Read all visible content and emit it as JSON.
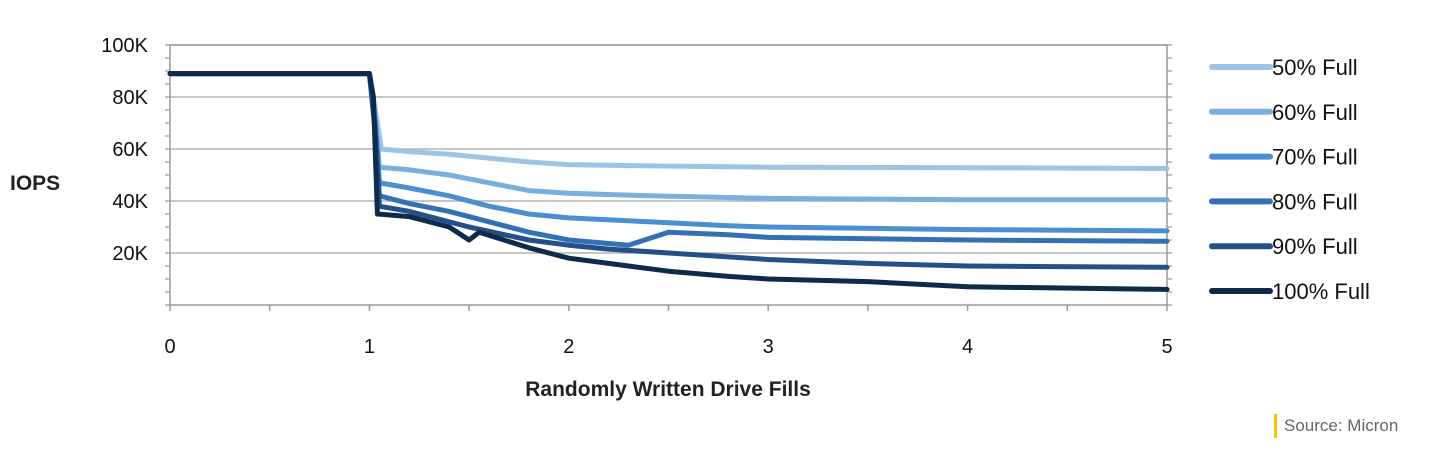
{
  "chart_data": {
    "type": "line",
    "title": "",
    "xlabel": "Randomly Written Drive Fills",
    "ylabel": "IOPS",
    "xlim": [
      0,
      5
    ],
    "ylim": [
      0,
      100000
    ],
    "x_ticks": [
      "0",
      "1",
      "2",
      "3",
      "4",
      "5"
    ],
    "y_ticks": [
      "20K",
      "40K",
      "60K",
      "80K",
      "100K"
    ],
    "grid": true,
    "legend_position": "right",
    "series": [
      {
        "name": "50% Full",
        "color": "#9dc3e6",
        "points": [
          [
            0,
            89000
          ],
          [
            1.0,
            89000
          ],
          [
            1.03,
            75000
          ],
          [
            1.06,
            60000
          ],
          [
            1.2,
            59000
          ],
          [
            1.4,
            58000
          ],
          [
            1.6,
            56500
          ],
          [
            1.8,
            55000
          ],
          [
            2.0,
            54000
          ],
          [
            2.4,
            53500
          ],
          [
            3.0,
            53000
          ],
          [
            4.0,
            52800
          ],
          [
            5.0,
            52500
          ]
        ]
      },
      {
        "name": "60% Full",
        "color": "#7aaedd",
        "points": [
          [
            0,
            89000
          ],
          [
            1.0,
            89000
          ],
          [
            1.03,
            72000
          ],
          [
            1.05,
            53000
          ],
          [
            1.2,
            52000
          ],
          [
            1.4,
            50000
          ],
          [
            1.6,
            47000
          ],
          [
            1.8,
            44000
          ],
          [
            2.0,
            43000
          ],
          [
            2.4,
            42000
          ],
          [
            3.0,
            41000
          ],
          [
            4.0,
            40500
          ],
          [
            5.0,
            40500
          ]
        ]
      },
      {
        "name": "70% Full",
        "color": "#4a8fd0",
        "points": [
          [
            0,
            89000
          ],
          [
            1.0,
            89000
          ],
          [
            1.03,
            70000
          ],
          [
            1.05,
            47000
          ],
          [
            1.2,
            45000
          ],
          [
            1.4,
            42000
          ],
          [
            1.6,
            38000
          ],
          [
            1.8,
            35000
          ],
          [
            2.0,
            33500
          ],
          [
            2.4,
            32000
          ],
          [
            2.8,
            30500
          ],
          [
            3.0,
            30000
          ],
          [
            4.0,
            29000
          ],
          [
            5.0,
            28500
          ]
        ]
      },
      {
        "name": "80% Full",
        "color": "#3470b4",
        "points": [
          [
            0,
            89000
          ],
          [
            1.0,
            89000
          ],
          [
            1.03,
            68000
          ],
          [
            1.05,
            42000
          ],
          [
            1.2,
            39000
          ],
          [
            1.4,
            36000
          ],
          [
            1.6,
            32000
          ],
          [
            1.8,
            28000
          ],
          [
            2.0,
            25000
          ],
          [
            2.3,
            23000
          ],
          [
            2.5,
            28000
          ],
          [
            2.8,
            27000
          ],
          [
            3.0,
            26000
          ],
          [
            4.0,
            25000
          ],
          [
            5.0,
            24500
          ]
        ]
      },
      {
        "name": "90% Full",
        "color": "#24508a",
        "points": [
          [
            0,
            89000
          ],
          [
            1.0,
            89000
          ],
          [
            1.03,
            66000
          ],
          [
            1.05,
            38000
          ],
          [
            1.2,
            36000
          ],
          [
            1.5,
            30000
          ],
          [
            1.8,
            25000
          ],
          [
            2.0,
            23000
          ],
          [
            2.2,
            21500
          ],
          [
            2.5,
            20000
          ],
          [
            3.0,
            17500
          ],
          [
            3.5,
            16000
          ],
          [
            4.0,
            15000
          ],
          [
            5.0,
            14500
          ]
        ]
      },
      {
        "name": "100% Full",
        "color": "#0f2a4a",
        "points": [
          [
            0,
            89000
          ],
          [
            1.0,
            89000
          ],
          [
            1.02,
            80000
          ],
          [
            1.04,
            35000
          ],
          [
            1.2,
            34000
          ],
          [
            1.4,
            30000
          ],
          [
            1.5,
            25000
          ],
          [
            1.55,
            28000
          ],
          [
            1.8,
            22000
          ],
          [
            2.0,
            18000
          ],
          [
            2.3,
            15000
          ],
          [
            2.5,
            13000
          ],
          [
            2.8,
            11000
          ],
          [
            3.0,
            10000
          ],
          [
            3.5,
            9000
          ],
          [
            4.0,
            7000
          ],
          [
            5.0,
            6000
          ]
        ]
      }
    ]
  },
  "source": "Source: Micron"
}
